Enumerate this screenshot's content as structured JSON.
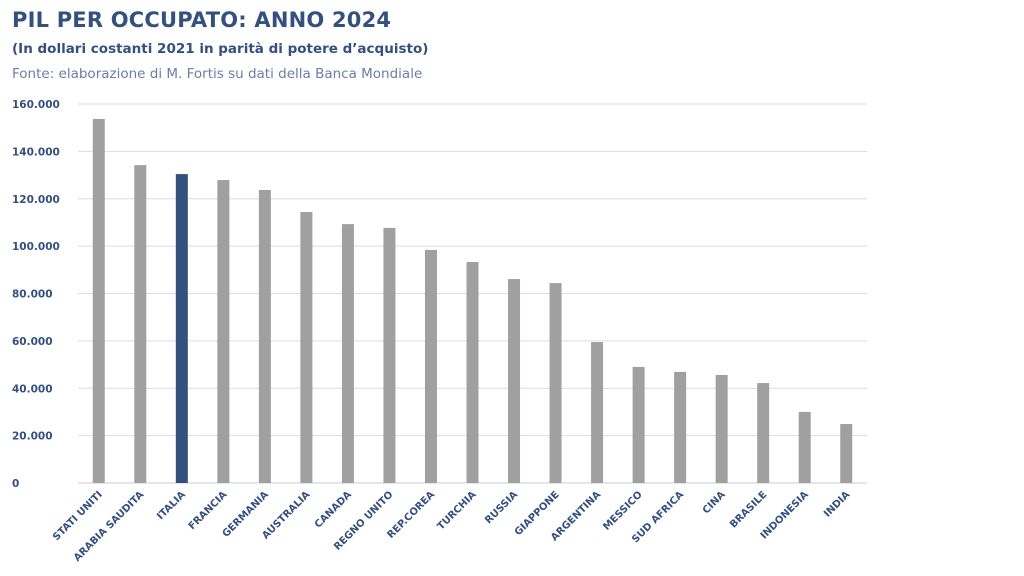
{
  "chart_data": {
    "type": "bar",
    "title": "PIL PER OCCUPATO: ANNO 2024",
    "subtitle": "(In dollari costanti 2021 in parità di potere d’acquisto)",
    "source": "Fonte: elaborazione di M. Fortis su dati della Banca Mondiale",
    "xlabel": "",
    "ylabel": "",
    "ylim": [
      0,
      160000
    ],
    "yticks": [
      0,
      20000,
      40000,
      60000,
      80000,
      100000,
      120000,
      140000,
      160000
    ],
    "ytick_labels": [
      "0",
      "20.000",
      "40.000",
      "60.000",
      "80.000",
      "100.000",
      "120.000",
      "140.000",
      "160.000"
    ],
    "grid": true,
    "categories": [
      "STATI UNITI",
      "ARABIA SAUDITA",
      "ITALIA",
      "FRANCIA",
      "GERMANIA",
      "AUSTRALIA",
      "CANADA",
      "REGNO UNITO",
      "REP.COREA",
      "TURCHIA",
      "RUSSIA",
      "GIAPPONE",
      "ARGENTINA",
      "MESSICO",
      "SUD AFRICA",
      "CINA",
      "BRASILE",
      "INDONESIA",
      "INDIA"
    ],
    "values": [
      153700,
      134200,
      130400,
      127900,
      123700,
      114400,
      109300,
      107700,
      98400,
      93300,
      86100,
      84400,
      59500,
      49000,
      46900,
      45600,
      42200,
      30000,
      24900
    ],
    "highlight": "ITALIA",
    "colors": {
      "default": "#a0a0a0",
      "highlight": "#34507f",
      "grid": "#d9dde6",
      "text": "#34507f"
    }
  }
}
